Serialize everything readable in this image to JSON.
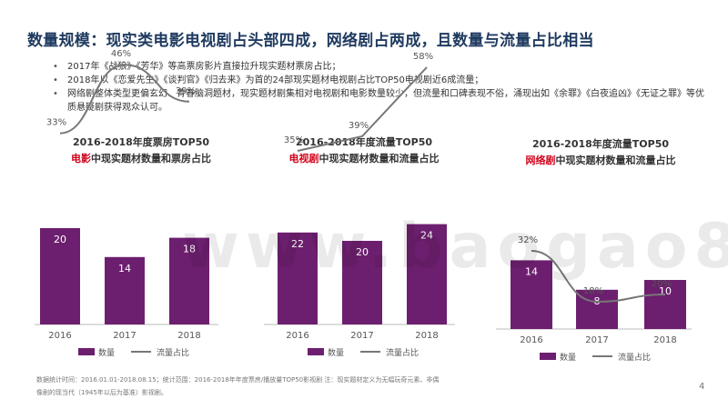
{
  "title": "数量规模：现实类电影电视剧占头部四成，网络剧占两成，且数量与流量占比相当",
  "bullets": [
    "2017年《战狼》《芳华》等高票房影片直接拉升现实题材票房占比；",
    "2018年以《恋爱先生》《谈判官》《归去来》为首的24部现实题材电视剧占比TOP50电视剧近6成流量；",
    "网络剧整体类型更偏玄幻、青春脑洞题材，现实题材剧集相对电视剧和电影数量较少，但流量和口碑表现不俗，涌现出如《余罪》《白夜追凶》《无证之罪》等优质悬疑剧获得观众认可。"
  ],
  "watermark": "www.baogao8.com",
  "legend": {
    "bar": "数量",
    "line": "流量占比"
  },
  "colors": {
    "bar": "#6d1f6f",
    "line": "#777777",
    "highlight": "#d0021b",
    "title": "#1f3a5f"
  },
  "charts": [
    {
      "title": "2016-2018年度票房TOP50",
      "sub_highlight": "电影",
      "sub_rest": "中现实题材数量和票房占比"
    },
    {
      "title": "2016-2018年度流量TOP50",
      "sub_highlight": "电视剧",
      "sub_rest": "中现实题材数量和流量占比"
    },
    {
      "title": "2016-2018年度流量TOP50",
      "sub_highlight": "网络剧",
      "sub_rest": "中现实题材数量和流量占比"
    }
  ],
  "chart_data": [
    {
      "type": "bar",
      "categories": [
        "2016",
        "2017",
        "2018"
      ],
      "series": [
        {
          "name": "数量",
          "type": "bar",
          "values": [
            20,
            14,
            18
          ]
        },
        {
          "name": "流量占比",
          "type": "line",
          "values": [
            33,
            46,
            39
          ],
          "labels": [
            "33%",
            "46%",
            "39%"
          ]
        }
      ]
    },
    {
      "type": "bar",
      "categories": [
        "2016",
        "2017",
        "2018"
      ],
      "series": [
        {
          "name": "数量",
          "type": "bar",
          "values": [
            22,
            20,
            24
          ]
        },
        {
          "name": "流量占比",
          "type": "line",
          "values": [
            35,
            39,
            58
          ],
          "labels": [
            "35%",
            "39%",
            "58%"
          ]
        }
      ]
    },
    {
      "type": "bar",
      "categories": [
        "2016",
        "2017",
        "2018"
      ],
      "series": [
        {
          "name": "数量",
          "type": "bar",
          "values": [
            14,
            8,
            10
          ]
        },
        {
          "name": "流量占比",
          "type": "line",
          "values": [
            32,
            18,
            20
          ],
          "labels": [
            "32%",
            "18%",
            "20%"
          ]
        }
      ]
    }
  ],
  "footer": [
    "数据统计时间：2016.01.01-2018.08.15；统计范围：2016-2018年年度票房/播放量TOP50影视剧   注：现实题材定义为无幅玩奇元素、非偶",
    "像剧的现当代（1945年以后为基准）影视剧。"
  ],
  "page_number": "4"
}
